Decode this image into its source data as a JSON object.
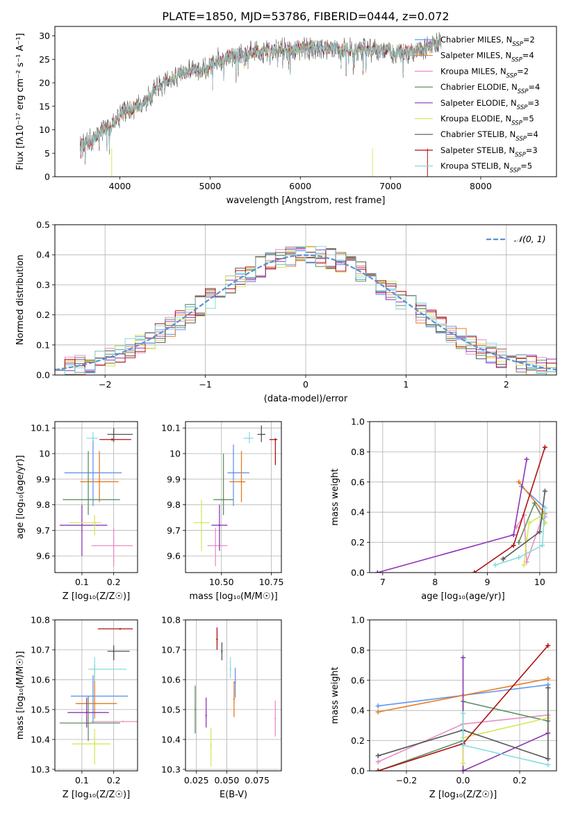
{
  "figure_title": "PLATE=1850, MJD=53786, FIBERID=0444, z=0.072",
  "colors": [
    "#6495ED",
    "#E87A22",
    "#E88FC4",
    "#5E8F62",
    "#8E35B5",
    "#D4E85A",
    "#555555",
    "#B01010",
    "#85DDE0"
  ],
  "chart_data": [
    {
      "id": "spectrum",
      "type": "line",
      "title": "PLATE=1850, MJD=53786, FIBERID=0444, z=0.072",
      "xlabel": "wavelength [Angstrom, rest frame]",
      "ylabel": "Flux [fλ10⁻¹⁷ erg cm⁻² s⁻¹ A⁻¹]",
      "xlim": [
        3280,
        8840
      ],
      "ylim": [
        0,
        32
      ],
      "xticks": [
        4000,
        5000,
        6000,
        7000,
        8000
      ],
      "yticks": [
        0,
        5,
        10,
        15,
        20,
        25,
        30
      ],
      "legend_placement": "right",
      "grid": false,
      "spectrum_envelope": {
        "x": [
          3560,
          3600,
          3700,
          3800,
          3900,
          4000,
          4100,
          4200,
          4300,
          4400,
          4500,
          4600,
          4700,
          4800,
          4900,
          5000,
          5100,
          5200,
          5300,
          5400,
          5500,
          5600,
          5700,
          5800,
          5900,
          6000,
          6100,
          6200,
          6300,
          6400,
          6500,
          6600,
          6700,
          6800,
          6900,
          7000,
          7100,
          7200,
          7300,
          7400,
          7500,
          7560
        ],
        "y": [
          7,
          6.5,
          8,
          10,
          10.5,
          13,
          14.5,
          15,
          16,
          19,
          20,
          21,
          22,
          23,
          22.5,
          24,
          25,
          25.5,
          26,
          26,
          26.5,
          26.8,
          27,
          27.2,
          27,
          27.5,
          27.5,
          27.5,
          27.5,
          27.3,
          27.2,
          27,
          27,
          27,
          27,
          26.8,
          26.5,
          26.5,
          27,
          27.5,
          28,
          28.8
        ]
      },
      "legend": [
        {
          "label": "Chabrier MILES, N",
          "sub": "SSP",
          "suffix": "=2"
        },
        {
          "label": "Salpeter MILES, N",
          "sub": "SSP",
          "suffix": "=4"
        },
        {
          "label": "Kroupa MILES, N",
          "sub": "SSP",
          "suffix": "=2"
        },
        {
          "label": "Chabrier ELODIE, N",
          "sub": "SSP",
          "suffix": "=4"
        },
        {
          "label": "Salpeter ELODIE, N",
          "sub": "SSP",
          "suffix": "=3"
        },
        {
          "label": "Kroupa ELODIE, N",
          "sub": "SSP",
          "suffix": "=5"
        },
        {
          "label": "Chabrier STELIB, N",
          "sub": "SSP",
          "suffix": "=4"
        },
        {
          "label": "Salpeter STELIB, N",
          "sub": "SSP",
          "suffix": "=3"
        },
        {
          "label": "Kroupa STELIB, N",
          "sub": "SSP",
          "suffix": "=5"
        }
      ]
    },
    {
      "id": "residuals",
      "type": "line",
      "xlabel": "(data-model)/error",
      "ylabel": "Normed distribution",
      "xlim": [
        -2.5,
        2.5
      ],
      "ylim": [
        0,
        0.5
      ],
      "xticks": [
        -2,
        -1,
        0,
        1,
        2
      ],
      "xticklabels": [
        "−2",
        "−1",
        "0",
        "1",
        "2"
      ],
      "yticks": [
        0,
        0.1,
        0.2,
        0.3,
        0.4,
        0.5
      ],
      "yticklabels": [
        "0.0",
        "0.1",
        "0.2",
        "0.3",
        "0.4",
        "0.5"
      ],
      "grid": true,
      "legend": "𝒩(0, 1)",
      "legend_placement": "top-right",
      "bin_width": 0.1
    },
    {
      "id": "age_vs_Z",
      "type": "scatter",
      "xlabel": "Z [log₁₀(Z/Z☉)]",
      "ylabel": "age  [log₁₀(age/yr)]",
      "xlim": [
        0.015,
        0.275
      ],
      "ylim": [
        9.535,
        10.125
      ],
      "xticks": [
        0.1,
        0.2
      ],
      "yticks": [
        9.6,
        9.7,
        9.8,
        9.9,
        10.0,
        10.1
      ],
      "grid": true,
      "points": [
        {
          "x": 0.135,
          "y": 9.925,
          "xerr": [
            0.09,
            0.09
          ],
          "yerr": [
            0.13,
            0.13
          ]
        },
        {
          "x": 0.155,
          "y": 9.89,
          "xerr": [
            0.06,
            0.06
          ],
          "yerr": [
            0.08,
            0.12
          ]
        },
        {
          "x": 0.2,
          "y": 9.64,
          "xerr": [
            0.07,
            0.06
          ],
          "yerr": [
            0.08,
            0.07
          ]
        },
        {
          "x": 0.12,
          "y": 9.82,
          "xerr": [
            0.08,
            0.1
          ],
          "yerr": [
            0.06,
            0.19
          ]
        },
        {
          "x": 0.1,
          "y": 9.72,
          "xerr": [
            0.07,
            0.08
          ],
          "yerr": [
            0.12,
            0.08
          ]
        },
        {
          "x": 0.14,
          "y": 9.73,
          "xerr": [
            0.08,
            0.02
          ],
          "yerr": [
            0.05,
            0.03
          ]
        },
        {
          "x": 0.2,
          "y": 10.075,
          "xerr": [
            0.02,
            0.06
          ],
          "yerr": [
            0.03,
            0.025
          ]
        },
        {
          "x": 0.195,
          "y": 10.055,
          "xerr": [
            0.04,
            0.06
          ],
          "yerr": [
            0.005,
            0.005
          ]
        },
        {
          "x": 0.135,
          "y": 10.06,
          "xerr": [
            0.02,
            0.015
          ],
          "yerr": [
            0.01,
            0.025
          ]
        }
      ]
    },
    {
      "id": "age_vs_mass",
      "type": "scatter",
      "xlabel": "mass [log₁₀(M/M☉)]",
      "ylabel": "",
      "xlim": [
        10.32,
        10.8
      ],
      "ylim": [
        9.535,
        10.125
      ],
      "xticks": [
        10.5,
        10.75
      ],
      "xticklabels": [
        "10.50",
        "10.75"
      ],
      "yticks": [
        9.6,
        9.7,
        9.8,
        9.9,
        10.0,
        10.1
      ],
      "grid": true,
      "points": [
        {
          "x": 10.56,
          "y": 9.925,
          "xerr": [
            0.03,
            0.08
          ],
          "yerr": [
            0.13,
            0.11
          ]
        },
        {
          "x": 10.6,
          "y": 9.89,
          "xerr": [
            0.06,
            0.02
          ],
          "yerr": [
            0.08,
            0.12
          ]
        },
        {
          "x": 10.47,
          "y": 9.64,
          "xerr": [
            0.04,
            0.06
          ],
          "yerr": [
            0.08,
            0.07
          ]
        },
        {
          "x": 10.51,
          "y": 9.82,
          "xerr": [
            0.05,
            0.05
          ],
          "yerr": [
            0.06,
            0.18
          ]
        },
        {
          "x": 10.49,
          "y": 9.72,
          "xerr": [
            0.04,
            0.04
          ],
          "yerr": [
            0.1,
            0.08
          ]
        },
        {
          "x": 10.4,
          "y": 9.73,
          "xerr": [
            0.04,
            0.04
          ],
          "yerr": [
            0.11,
            0.09
          ]
        },
        {
          "x": 10.7,
          "y": 10.075,
          "xerr": [
            0.02,
            0.02
          ],
          "yerr": [
            0.03,
            0.035
          ]
        },
        {
          "x": 10.77,
          "y": 10.055,
          "xerr": [
            0.03,
            0.01
          ],
          "yerr": [
            0.1,
            0.005
          ]
        },
        {
          "x": 10.64,
          "y": 10.06,
          "xerr": [
            0.03,
            0.02
          ],
          "yerr": [
            0.02,
            0.025
          ]
        }
      ]
    },
    {
      "id": "weight_vs_age",
      "type": "line",
      "xlabel": "age  [log₁₀(age/yr)]",
      "ylabel": "mass weight",
      "xlim": [
        6.75,
        10.32
      ],
      "ylim": [
        0,
        1
      ],
      "xticks": [
        7,
        8,
        9,
        10
      ],
      "yticks": [
        0,
        0.2,
        0.4,
        0.6,
        0.8,
        1.0
      ],
      "yticklabels": [
        "0.0",
        "0.2",
        "0.4",
        "0.6",
        "0.8",
        "1.0"
      ],
      "grid": true,
      "series": [
        {
          "x": [
            9.65,
            10.1
          ],
          "y": [
            0.57,
            0.43
          ]
        },
        {
          "x": [
            9.6,
            10.1
          ],
          "y": [
            0.6,
            0.39
          ]
        },
        {
          "x": [
            9.55,
            9.7,
            9.75,
            10.05,
            10.1
          ],
          "y": [
            0.3,
            0.38,
            0.07,
            0.37,
            0.37
          ]
        },
        {
          "x": [
            9.6,
            9.9,
            10.1
          ],
          "y": [
            0.2,
            0.46,
            0.33
          ]
        },
        {
          "x": [
            6.9,
            9.5,
            9.75
          ],
          "y": [
            0.0,
            0.25,
            0.75
          ]
        },
        {
          "x": [
            9.7,
            9.75,
            9.8,
            10.05,
            10.1
          ],
          "y": [
            0.05,
            0.22,
            0.33,
            0.38,
            0.33
          ]
        },
        {
          "x": [
            9.3,
            10.0,
            10.1
          ],
          "y": [
            0.09,
            0.27,
            0.54
          ]
        },
        {
          "x": [
            8.75,
            9.5,
            10.1
          ],
          "y": [
            0.0,
            0.18,
            0.83
          ]
        },
        {
          "x": [
            9.15,
            9.6,
            10.05,
            10.1
          ],
          "y": [
            0.05,
            0.1,
            0.18,
            0.43
          ]
        }
      ]
    },
    {
      "id": "mass_vs_Z",
      "type": "scatter",
      "xlabel": "Z [log₁₀(Z/Z☉)]",
      "ylabel": "mass [log₁₀(M/M☉)]",
      "xlim": [
        0.015,
        0.275
      ],
      "ylim": [
        10.295,
        10.8
      ],
      "xticks": [
        0.1,
        0.2
      ],
      "yticks": [
        10.3,
        10.4,
        10.5,
        10.6,
        10.7,
        10.8
      ],
      "grid": true,
      "points": [
        {
          "x": 0.135,
          "y": 10.545,
          "xerr": [
            0.07,
            0.11
          ],
          "yerr": [
            0.09,
            0.07
          ]
        },
        {
          "x": 0.14,
          "y": 10.52,
          "xerr": [
            0.06,
            0.07
          ],
          "yerr": [
            0.05,
            0.13
          ]
        },
        {
          "x": 0.23,
          "y": 10.46,
          "xerr": [
            0.1,
            0.05
          ],
          "yerr": [
            0.0,
            0.0
          ]
        },
        {
          "x": 0.12,
          "y": 10.455,
          "xerr": [
            0.09,
            0.1
          ],
          "yerr": [
            0.06,
            0.09
          ]
        },
        {
          "x": 0.115,
          "y": 10.49,
          "xerr": [
            0.06,
            0.07
          ],
          "yerr": [
            0.05,
            0.05
          ]
        },
        {
          "x": 0.14,
          "y": 10.385,
          "xerr": [
            0.07,
            0.05
          ],
          "yerr": [
            0.07,
            0.05
          ]
        },
        {
          "x": 0.2,
          "y": 10.695,
          "xerr": [
            0.02,
            0.05
          ],
          "yerr": [
            0.03,
            0.02
          ]
        },
        {
          "x": 0.22,
          "y": 10.77,
          "xerr": [
            0.07,
            0.04
          ],
          "yerr": [
            0.0,
            0.0
          ]
        },
        {
          "x": 0.14,
          "y": 10.635,
          "xerr": [
            0.02,
            0.1
          ],
          "yerr": [
            0.04,
            0.04
          ]
        }
      ]
    },
    {
      "id": "mass_vs_ebv",
      "type": "scatter",
      "xlabel": "E(B-V)",
      "ylabel": "",
      "xlim": [
        0.016,
        0.095
      ],
      "ylim": [
        10.295,
        10.8
      ],
      "xticks": [
        0.025,
        0.05,
        0.075
      ],
      "xticklabels": [
        "0.025",
        "0.050",
        "0.075"
      ],
      "yticks": [
        10.3,
        10.4,
        10.5,
        10.6,
        10.7,
        10.8
      ],
      "grid": true,
      "points": [
        {
          "x": 0.057,
          "y": 10.59,
          "yerr": [
            0.05,
            0.05
          ]
        },
        {
          "x": 0.056,
          "y": 10.535,
          "yerr": [
            0.06,
            0.06
          ]
        },
        {
          "x": 0.09,
          "y": 10.47,
          "yerr": [
            0.06,
            0.06
          ]
        },
        {
          "x": 0.024,
          "y": 10.5,
          "yerr": [
            0.08,
            0.08
          ]
        },
        {
          "x": 0.033,
          "y": 10.48,
          "yerr": [
            0.04,
            0.06
          ]
        },
        {
          "x": 0.037,
          "y": 10.38,
          "yerr": [
            0.07,
            0.06
          ]
        },
        {
          "x": 0.046,
          "y": 10.695,
          "yerr": [
            0.03,
            0.03
          ]
        },
        {
          "x": 0.042,
          "y": 10.735,
          "yerr": [
            0.035,
            0.04
          ]
        },
        {
          "x": 0.053,
          "y": 10.635,
          "yerr": [
            0.03,
            0.04
          ]
        }
      ]
    },
    {
      "id": "weight_vs_Z",
      "type": "line",
      "xlabel": "Z [log₁₀(Z/Z☉)]",
      "ylabel": "mass weight",
      "xlim": [
        -0.33,
        0.33
      ],
      "ylim": [
        0,
        1
      ],
      "xticks": [
        -0.2,
        0.0,
        0.2
      ],
      "xticklabels": [
        "−0.2",
        "0.0",
        "0.2"
      ],
      "yticks": [
        0,
        0.2,
        0.4,
        0.6,
        0.8,
        1.0
      ],
      "yticklabels": [
        "0.0",
        "0.2",
        "0.4",
        "0.6",
        "0.8",
        "1.0"
      ],
      "grid": true,
      "series": [
        {
          "x": [
            -0.3,
            0.0,
            0.3
          ],
          "y": [
            0.43,
            0.5,
            0.57
          ]
        },
        {
          "x": [
            -0.3,
            0.0,
            0.3
          ],
          "y": [
            0.39,
            0.5,
            0.61
          ]
        },
        {
          "x": [
            -0.3,
            0.0,
            0.3
          ],
          "y": [
            0.06,
            0.31,
            0.37
          ]
        },
        {
          "x": [
            -0.3,
            0.0,
            0.0,
            0.3
          ],
          "y": [
            0.0,
            0.2,
            0.46,
            0.33
          ]
        },
        {
          "x": [
            0.0,
            0.0,
            0.3
          ],
          "y": [
            0.75,
            0.0,
            0.25
          ]
        },
        {
          "x": [
            0.0,
            0.0,
            0.0,
            0.3
          ],
          "y": [
            0.38,
            0.05,
            0.22,
            0.35
          ]
        },
        {
          "x": [
            -0.3,
            0.0,
            0.3,
            0.3
          ],
          "y": [
            0.1,
            0.27,
            0.08,
            0.55
          ]
        },
        {
          "x": [
            -0.3,
            0.0,
            0.3
          ],
          "y": [
            0.0,
            0.18,
            0.83
          ]
        },
        {
          "x": [
            0.0,
            0.0,
            0.3
          ],
          "y": [
            0.38,
            0.17,
            0.04
          ]
        }
      ]
    }
  ]
}
